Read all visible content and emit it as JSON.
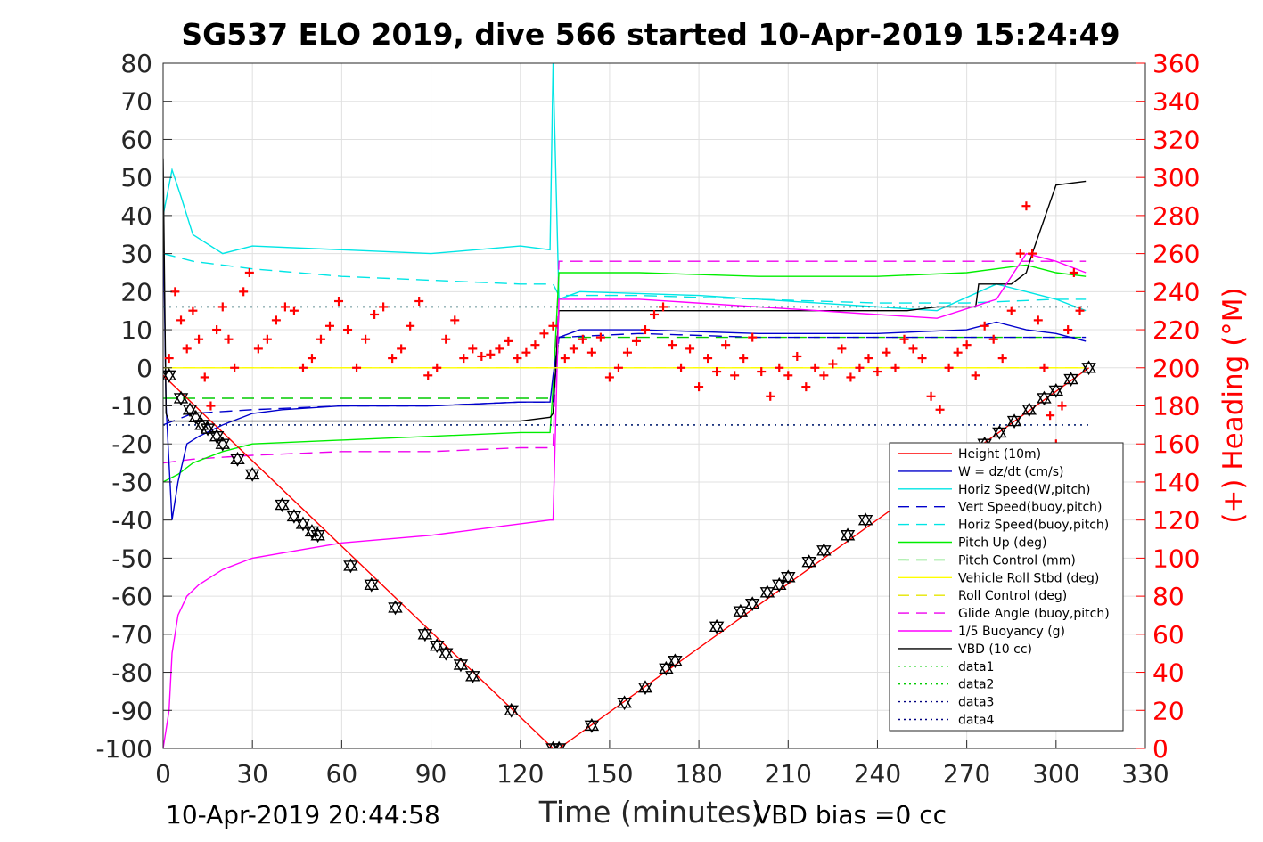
{
  "chart_data": {
    "type": "line",
    "title": "SG537 ELO 2019, dive 566 started 10-Apr-2019 15:24:49",
    "xlabel": "Time (minutes)",
    "ylabel": "",
    "ylabel_right": "(+) Heading (°M)",
    "xlim": [
      0,
      330
    ],
    "ylim": [
      -100,
      80
    ],
    "ylim_right": [
      0,
      360
    ],
    "xticks": [
      0,
      30,
      60,
      90,
      120,
      150,
      180,
      210,
      240,
      270,
      300,
      330
    ],
    "yticks": [
      -100,
      -90,
      -80,
      -70,
      -60,
      -50,
      -40,
      -30,
      -20,
      -10,
      0,
      10,
      20,
      30,
      40,
      50,
      60,
      70,
      80
    ],
    "yticks_right": [
      0,
      20,
      40,
      60,
      80,
      100,
      120,
      140,
      160,
      180,
      200,
      220,
      240,
      260,
      280,
      300,
      320,
      340,
      360
    ],
    "grid": true,
    "legend_position": "lower-right",
    "colors": {
      "height": "#ff0000",
      "w": "#0000cc",
      "horiz_w": "#00e5e5",
      "vert_buoy": "#0000cc",
      "horiz_buoy": "#00e5e5",
      "pitch_up": "#00ee00",
      "pitch_ctrl": "#00cc00",
      "roll": "#ffff00",
      "roll_ctrl": "#e6e600",
      "glide": "#ee00ee",
      "buoyancy": "#ff00ff",
      "vbd": "#000000",
      "heading": "#ff0000",
      "right_axis": "#ff0000"
    },
    "series": [
      {
        "name": "Height (10m)",
        "style": "solid",
        "x": [
          0,
          131,
          132,
          133,
          311
        ],
        "y": [
          -2,
          -100,
          -100,
          -100,
          0
        ]
      },
      {
        "name": "W = dz/dt (cm/s)",
        "style": "solid",
        "x": [
          0,
          1,
          3,
          5,
          8,
          12,
          20,
          30,
          40,
          60,
          90,
          120,
          130,
          131,
          133,
          140,
          160,
          200,
          240,
          270,
          280,
          290,
          300,
          310
        ],
        "y": [
          40,
          -10,
          -40,
          -30,
          -20,
          -18,
          -15,
          -12,
          -11,
          -10,
          -10,
          -9,
          -9,
          -2,
          8,
          10,
          10,
          9,
          9,
          10,
          12,
          10,
          9,
          7
        ]
      },
      {
        "name": "Horiz Speed(W,pitch)",
        "style": "solid",
        "x": [
          0,
          3,
          6,
          10,
          20,
          30,
          60,
          90,
          120,
          130,
          131,
          133,
          140,
          180,
          220,
          260,
          280,
          290,
          300,
          310
        ],
        "y": [
          40,
          52,
          45,
          35,
          30,
          32,
          31,
          30,
          32,
          31,
          80,
          18,
          20,
          19,
          17,
          15,
          22,
          20,
          18,
          15
        ]
      },
      {
        "name": "Vert Speed(buoy,pitch)",
        "style": "dash",
        "x": [
          0,
          10,
          30,
          60,
          90,
          120,
          131,
          133,
          160,
          200,
          240,
          270,
          300,
          310
        ],
        "y": [
          -15,
          -12,
          -11,
          -10,
          -10,
          -9,
          -9,
          8,
          9,
          8,
          8,
          8,
          8,
          8
        ]
      },
      {
        "name": "Horiz Speed(buoy,pitch)",
        "style": "dash",
        "x": [
          0,
          10,
          30,
          60,
          90,
          120,
          131,
          133,
          160,
          200,
          240,
          270,
          300,
          310
        ],
        "y": [
          30,
          28,
          26,
          24,
          23,
          22,
          22,
          19,
          19,
          18,
          17,
          17,
          18,
          18
        ]
      },
      {
        "name": "Pitch Up (deg)",
        "style": "solid",
        "x": [
          0,
          5,
          10,
          20,
          30,
          60,
          90,
          120,
          130,
          131,
          133,
          160,
          200,
          240,
          270,
          280,
          290,
          300,
          310
        ],
        "y": [
          -30,
          -28,
          -25,
          -22,
          -20,
          -19,
          -18,
          -17,
          -17,
          -5,
          25,
          25,
          24,
          24,
          25,
          26,
          27,
          25,
          24
        ]
      },
      {
        "name": "Pitch Control (mm)",
        "style": "dash",
        "x": [
          0,
          30,
          60,
          90,
          120,
          131,
          133,
          160,
          200,
          240,
          270,
          300,
          310
        ],
        "y": [
          -8,
          -8,
          -8,
          -8,
          -8,
          -8,
          8,
          8,
          8,
          8,
          8,
          8,
          8
        ]
      },
      {
        "name": "Vehicle Roll Stbd (deg)",
        "style": "solid",
        "x": [
          0,
          10,
          20,
          30,
          60,
          90,
          120,
          131,
          133,
          160,
          200,
          240,
          270,
          300,
          310
        ],
        "y": [
          0,
          0,
          0,
          0,
          0,
          0,
          0,
          0,
          0,
          0,
          0,
          0,
          0,
          0,
          0
        ]
      },
      {
        "name": "Roll Control (deg)",
        "style": "dash",
        "x": [
          0,
          30,
          60,
          90,
          120,
          131,
          133,
          160,
          200,
          240,
          270,
          300,
          310
        ],
        "y": [
          0,
          0,
          0,
          0,
          0,
          0,
          0,
          0,
          0,
          0,
          0,
          0,
          0
        ]
      },
      {
        "name": "Glide Angle (buoy,pitch)",
        "style": "dash",
        "x": [
          0,
          10,
          30,
          60,
          90,
          120,
          131,
          133,
          160,
          200,
          240,
          270,
          300,
          310
        ],
        "y": [
          -25,
          -24,
          -23,
          -22,
          -22,
          -21,
          -21,
          28,
          28,
          28,
          28,
          28,
          28,
          28
        ]
      },
      {
        "name": "1/5 Buoyancy (g)",
        "style": "solid",
        "x": [
          0,
          2,
          3,
          5,
          8,
          12,
          20,
          30,
          45,
          60,
          90,
          110,
          130,
          131,
          133,
          160,
          200,
          240,
          260,
          280,
          290,
          300,
          310
        ],
        "y": [
          -100,
          -90,
          -75,
          -65,
          -60,
          -57,
          -53,
          -50,
          -48,
          -46,
          -44,
          -42,
          -40,
          -40,
          18,
          18,
          16,
          14,
          13,
          18,
          30,
          28,
          25
        ]
      },
      {
        "name": "VBD (10 cc)",
        "style": "solid",
        "x": [
          0,
          1,
          2,
          8,
          20,
          30,
          60,
          90,
          120,
          130,
          131,
          133,
          140,
          180,
          220,
          250,
          260,
          273,
          274,
          285,
          290,
          292,
          300,
          310
        ],
        "y": [
          55,
          -12,
          -14,
          -14,
          -14,
          -14,
          -14,
          -14,
          -14,
          -13,
          -12,
          15,
          15,
          15,
          15,
          15,
          16,
          16,
          22,
          22,
          25,
          30,
          48,
          49
        ]
      },
      {
        "name": "data1",
        "style": "dot",
        "x": [
          0,
          311
        ],
        "y": [
          16,
          16
        ]
      },
      {
        "name": "data2",
        "style": "dot",
        "x": [
          0,
          311
        ],
        "y": [
          -15,
          -15
        ]
      },
      {
        "name": "data3",
        "style": "dot",
        "x": [
          0,
          311
        ],
        "y": [
          16,
          16
        ]
      },
      {
        "name": "data4",
        "style": "dot",
        "x": [
          0,
          311
        ],
        "y": [
          -15,
          -15
        ]
      }
    ],
    "heading_points": [
      [
        2,
        205
      ],
      [
        4,
        240
      ],
      [
        6,
        225
      ],
      [
        8,
        210
      ],
      [
        10,
        230
      ],
      [
        12,
        215
      ],
      [
        14,
        195
      ],
      [
        16,
        180
      ],
      [
        18,
        220
      ],
      [
        20,
        232
      ],
      [
        22,
        215
      ],
      [
        24,
        200
      ],
      [
        27,
        240
      ],
      [
        29,
        250
      ],
      [
        32,
        210
      ],
      [
        35,
        215
      ],
      [
        38,
        225
      ],
      [
        41,
        232
      ],
      [
        44,
        230
      ],
      [
        47,
        200
      ],
      [
        50,
        205
      ],
      [
        53,
        215
      ],
      [
        56,
        222
      ],
      [
        59,
        235
      ],
      [
        62,
        220
      ],
      [
        65,
        200
      ],
      [
        68,
        215
      ],
      [
        71,
        228
      ],
      [
        74,
        232
      ],
      [
        77,
        205
      ],
      [
        80,
        210
      ],
      [
        83,
        222
      ],
      [
        86,
        235
      ],
      [
        89,
        196
      ],
      [
        92,
        200
      ],
      [
        95,
        215
      ],
      [
        98,
        225
      ],
      [
        101,
        205
      ],
      [
        104,
        210
      ],
      [
        107,
        206
      ],
      [
        110,
        207
      ],
      [
        113,
        210
      ],
      [
        116,
        214
      ],
      [
        119,
        205
      ],
      [
        122,
        208
      ],
      [
        125,
        212
      ],
      [
        128,
        218
      ],
      [
        131,
        222
      ],
      [
        135,
        205
      ],
      [
        138,
        210
      ],
      [
        141,
        215
      ],
      [
        144,
        208
      ],
      [
        147,
        216
      ],
      [
        150,
        195
      ],
      [
        153,
        200
      ],
      [
        156,
        208
      ],
      [
        159,
        214
      ],
      [
        162,
        220
      ],
      [
        165,
        228
      ],
      [
        168,
        232
      ],
      [
        171,
        212
      ],
      [
        174,
        200
      ],
      [
        177,
        210
      ],
      [
        180,
        190
      ],
      [
        183,
        205
      ],
      [
        186,
        198
      ],
      [
        189,
        212
      ],
      [
        192,
        196
      ],
      [
        195,
        205
      ],
      [
        198,
        216
      ],
      [
        201,
        198
      ],
      [
        204,
        185
      ],
      [
        207,
        200
      ],
      [
        210,
        196
      ],
      [
        213,
        206
      ],
      [
        216,
        190
      ],
      [
        219,
        200
      ],
      [
        222,
        196
      ],
      [
        225,
        202
      ],
      [
        228,
        210
      ],
      [
        231,
        195
      ],
      [
        234,
        200
      ],
      [
        237,
        205
      ],
      [
        240,
        198
      ],
      [
        243,
        208
      ],
      [
        246,
        200
      ],
      [
        249,
        215
      ],
      [
        252,
        210
      ],
      [
        255,
        205
      ],
      [
        258,
        185
      ],
      [
        261,
        178
      ],
      [
        264,
        200
      ],
      [
        267,
        208
      ],
      [
        270,
        212
      ],
      [
        273,
        196
      ],
      [
        276,
        222
      ],
      [
        279,
        215
      ],
      [
        282,
        205
      ],
      [
        285,
        230
      ],
      [
        288,
        260
      ],
      [
        290,
        285
      ],
      [
        292,
        260
      ],
      [
        294,
        225
      ],
      [
        296,
        200
      ],
      [
        298,
        175
      ],
      [
        300,
        160
      ],
      [
        302,
        180
      ],
      [
        304,
        220
      ],
      [
        306,
        250
      ],
      [
        308,
        230
      ]
    ],
    "depth_markers": [
      [
        2,
        -2
      ],
      [
        6,
        -8
      ],
      [
        9,
        -11
      ],
      [
        11,
        -13
      ],
      [
        13,
        -15
      ],
      [
        15,
        -16
      ],
      [
        18,
        -18
      ],
      [
        20,
        -20
      ],
      [
        25,
        -24
      ],
      [
        30,
        -28
      ],
      [
        40,
        -36
      ],
      [
        44,
        -39
      ],
      [
        47,
        -41
      ],
      [
        50,
        -43
      ],
      [
        52,
        -44
      ],
      [
        63,
        -52
      ],
      [
        70,
        -57
      ],
      [
        78,
        -63
      ],
      [
        88,
        -70
      ],
      [
        92,
        -73
      ],
      [
        95,
        -75
      ],
      [
        100,
        -78
      ],
      [
        104,
        -81
      ],
      [
        117,
        -90
      ],
      [
        131,
        -100
      ],
      [
        133,
        -100
      ],
      [
        144,
        -94
      ],
      [
        155,
        -88
      ],
      [
        162,
        -84
      ],
      [
        169,
        -79
      ],
      [
        172,
        -77
      ],
      [
        186,
        -68
      ],
      [
        194,
        -64
      ],
      [
        198,
        -62
      ],
      [
        203,
        -59
      ],
      [
        207,
        -57
      ],
      [
        210,
        -55
      ],
      [
        217,
        -51
      ],
      [
        222,
        -48
      ],
      [
        230,
        -44
      ],
      [
        236,
        -40
      ],
      [
        276,
        -20
      ],
      [
        281,
        -17
      ],
      [
        286,
        -14
      ],
      [
        291,
        -11
      ],
      [
        296,
        -8
      ],
      [
        300,
        -6
      ],
      [
        305,
        -3
      ],
      [
        311,
        0
      ]
    ]
  },
  "footer": {
    "timestamp": "10-Apr-2019 20:44:58",
    "vbd_bias": "VBD bias =0 cc"
  }
}
